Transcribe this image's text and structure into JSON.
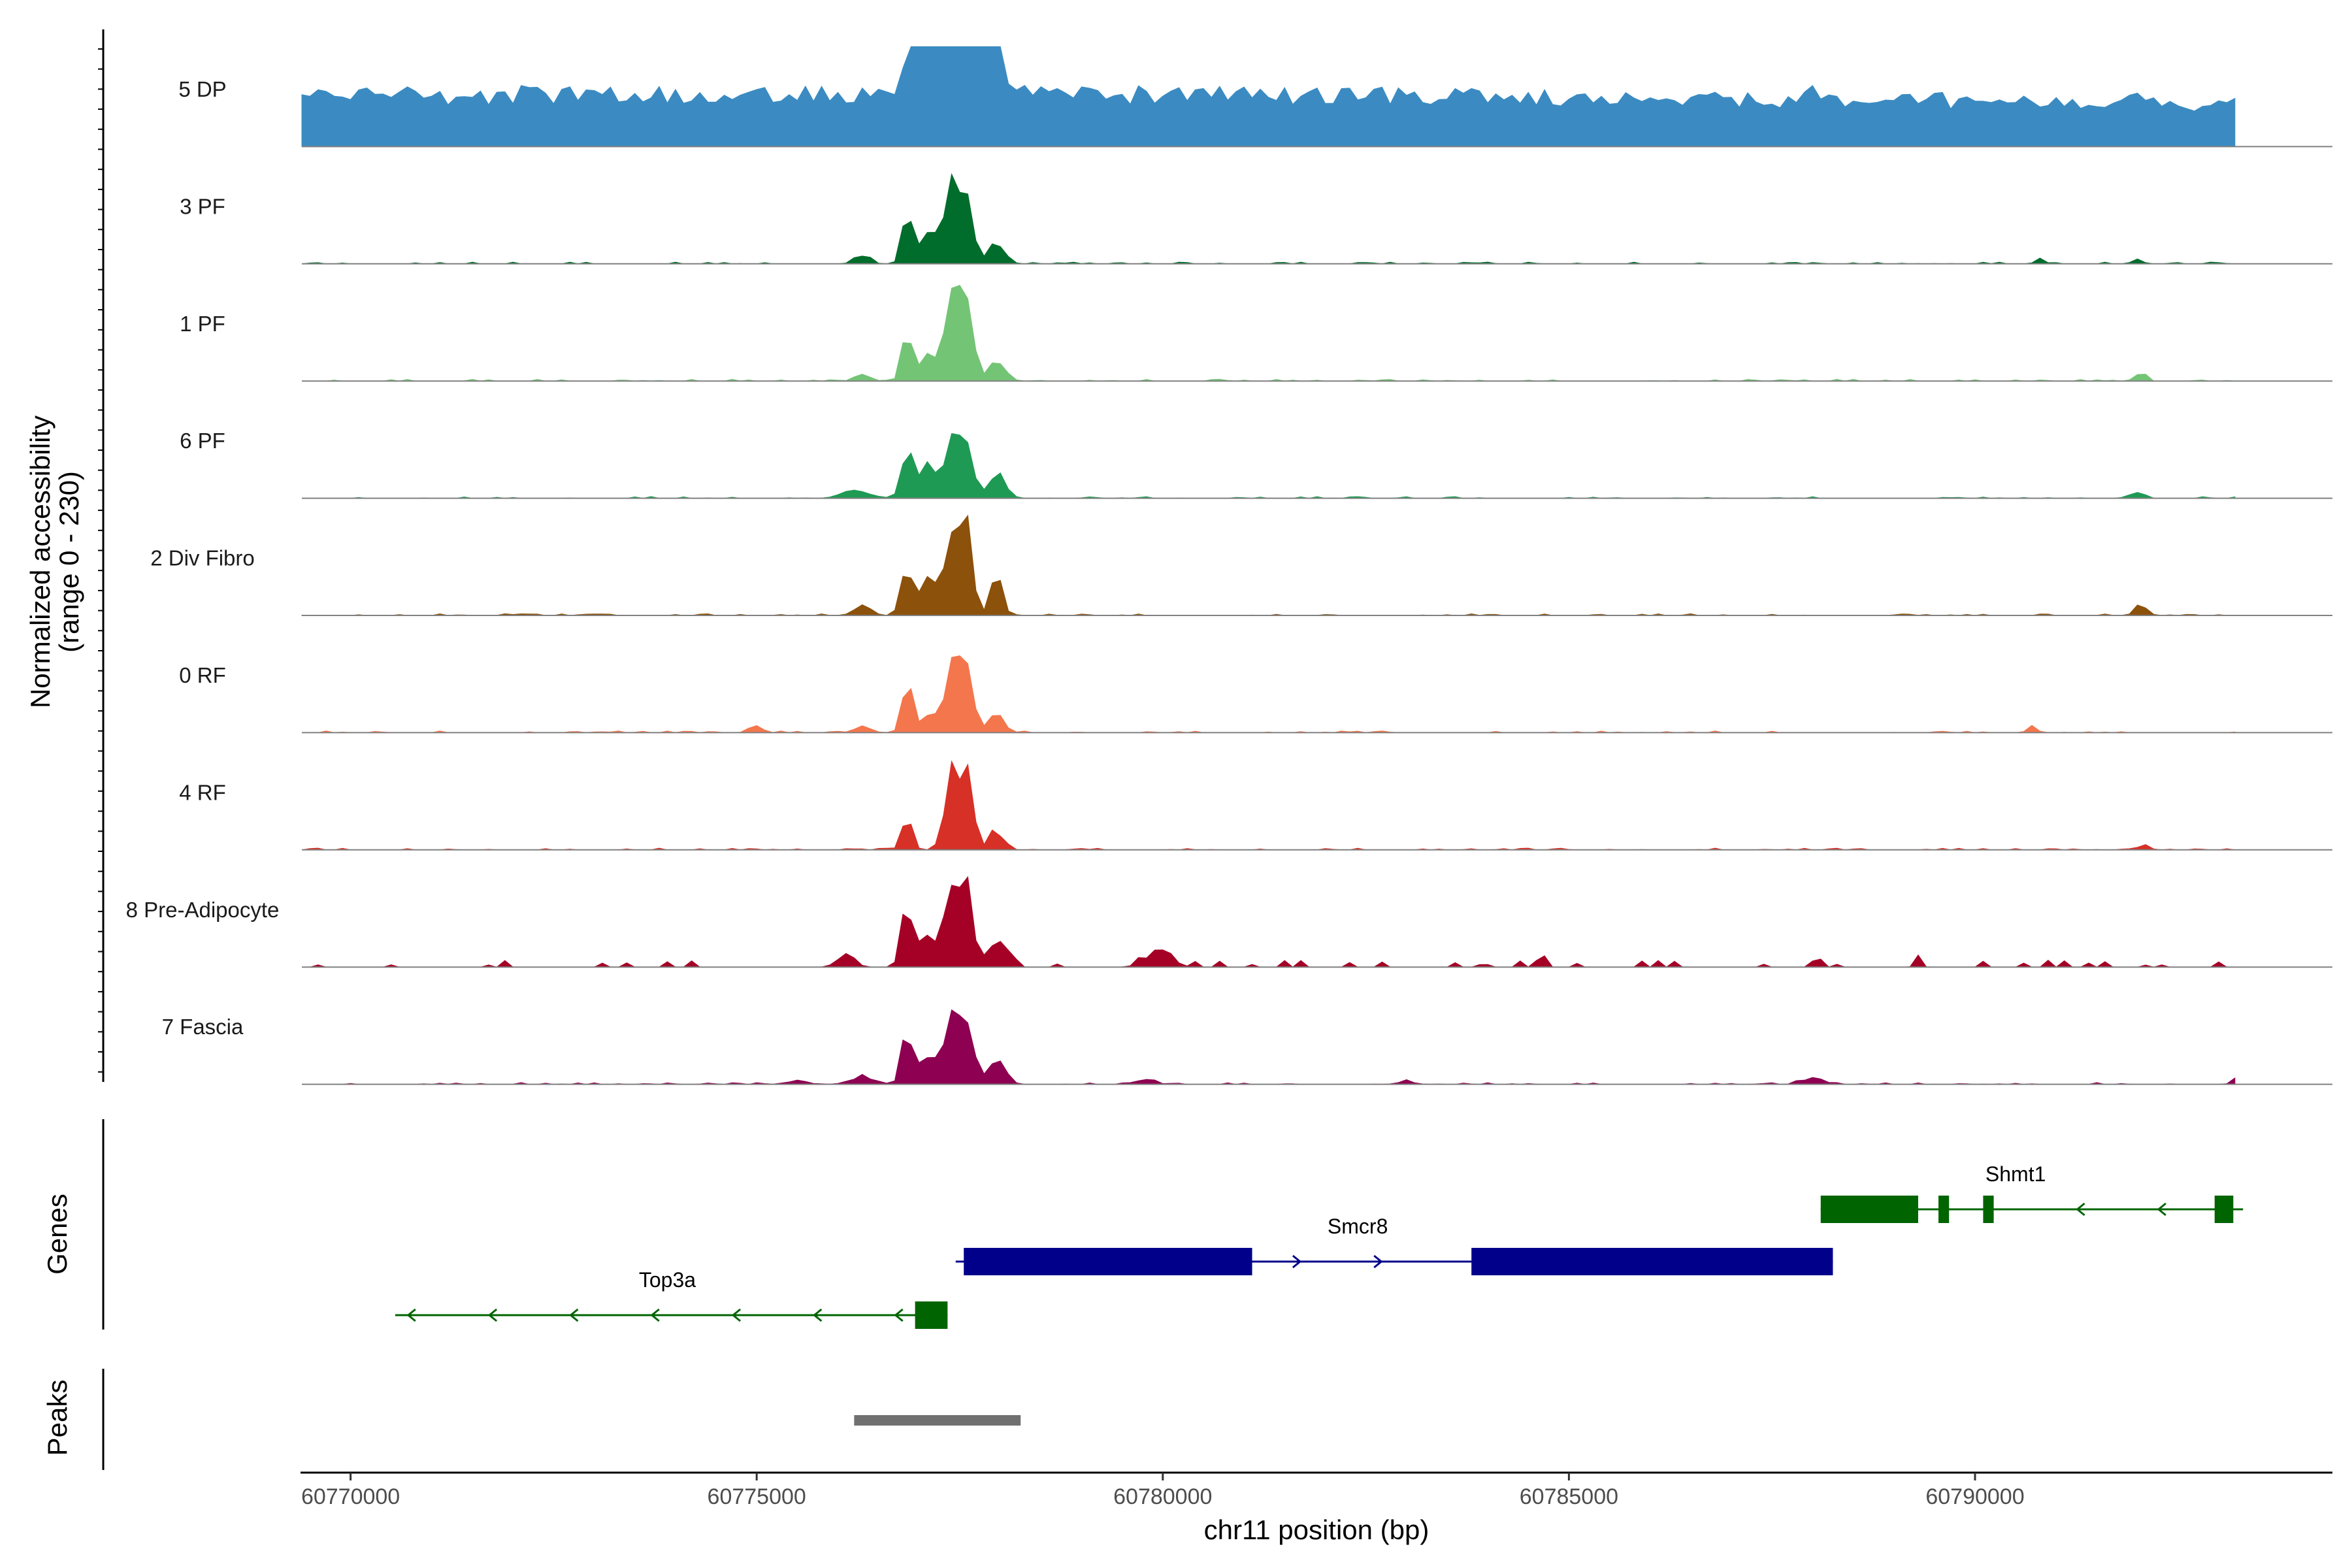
{
  "chart_data": {
    "type": "area",
    "title": "",
    "ylabel_line1": "Normalized accessibility",
    "ylabel_line2": "(range 0 - 230)",
    "y_range": [
      0,
      230
    ],
    "xlabel": "chr11 position (bp)",
    "chromosome": "chr11",
    "x_range": [
      60769400,
      60794400
    ],
    "x_ticks": [
      60770000,
      60775000,
      60780000,
      60785000,
      60790000
    ],
    "x_tick_labels": [
      "60770000",
      "60775000",
      "60780000",
      "60785000",
      "60790000"
    ],
    "bin_size_bp": 100,
    "tracks": [
      {
        "name": "5 DP",
        "color": "#3b8bc2"
      },
      {
        "name": "3 PF",
        "color": "#006d2c"
      },
      {
        "name": "1 PF",
        "color": "#74c476"
      },
      {
        "name": "6 PF",
        "color": "#1f9a54"
      },
      {
        "name": "2 Div Fibro",
        "color": "#8c510a"
      },
      {
        "name": "0 RF",
        "color": "#f4764c"
      },
      {
        "name": "4 RF",
        "color": "#d73027"
      },
      {
        "name": "8 Pre-Adipocyte",
        "color": "#a50026"
      },
      {
        "name": "7 Fascia",
        "color": "#8e0152"
      }
    ],
    "signal_series": [
      {
        "name": "5 DP",
        "peaks": [
          [
            60776650,
            130,
            50
          ],
          [
            60776850,
            0.24,
            0.12
          ],
          [
            60777150,
            0.53,
            0.3
          ],
          [
            60777420,
            0.98,
            0.6
          ],
          [
            60777600,
            0.68,
            0.3
          ],
          [
            60777950,
            0.26,
            0.2
          ],
          [
            60779800,
            0.03,
            0.1
          ],
          [
            60781500,
            0.03,
            0.1
          ],
          [
            60784000,
            0.03,
            0.1
          ],
          [
            60788000,
            0.07,
            0.12
          ],
          [
            60792000,
            0.09,
            0.12
          ],
          [
            60793000,
            0.06,
            0.1
          ]
        ]
      },
      {
        "name": "3 PF",
        "peaks": [
          [
            60776300,
            0.09,
            0.18
          ],
          [
            60776850,
            0.5,
            0.12
          ],
          [
            60777120,
            0.32,
            0.2
          ],
          [
            60777420,
            0.86,
            0.18
          ],
          [
            60777600,
            0.64,
            0.14
          ],
          [
            60777950,
            0.2,
            0.2
          ],
          [
            60790800,
            0.05,
            0.12
          ],
          [
            60792000,
            0.06,
            0.12
          ]
        ]
      },
      {
        "name": "1 PF",
        "peaks": [
          [
            60776300,
            0.07,
            0.18
          ],
          [
            60776850,
            0.54,
            0.12
          ],
          [
            60777120,
            0.3,
            0.2
          ],
          [
            60777420,
            0.98,
            0.18
          ],
          [
            60777600,
            0.7,
            0.14
          ],
          [
            60777950,
            0.18,
            0.22
          ],
          [
            60792050,
            0.1,
            0.1
          ]
        ]
      },
      {
        "name": "6 PF",
        "peaks": [
          [
            60776200,
            0.1,
            0.3
          ],
          [
            60776850,
            0.56,
            0.13
          ],
          [
            60777120,
            0.34,
            0.2
          ],
          [
            60777420,
            0.72,
            0.18
          ],
          [
            60777600,
            0.54,
            0.14
          ],
          [
            60777950,
            0.24,
            0.2
          ],
          [
            60792000,
            0.06,
            0.15
          ]
        ]
      },
      {
        "name": "2 Div Fibro",
        "peaks": [
          [
            60776300,
            0.1,
            0.2
          ],
          [
            60776850,
            0.52,
            0.14
          ],
          [
            60777120,
            0.36,
            0.2
          ],
          [
            60777420,
            0.84,
            0.18
          ],
          [
            60777600,
            0.85,
            0.12
          ],
          [
            60777950,
            0.5,
            0.14
          ],
          [
            60792050,
            0.1,
            0.15
          ]
        ]
      },
      {
        "name": "0 RF",
        "peaks": [
          [
            60775000,
            0.07,
            0.15
          ],
          [
            60776300,
            0.06,
            0.2
          ],
          [
            60776850,
            0.56,
            0.12
          ],
          [
            60777120,
            0.18,
            0.2
          ],
          [
            60777420,
            0.86,
            0.18
          ],
          [
            60777600,
            0.7,
            0.14
          ],
          [
            60777950,
            0.18,
            0.2
          ],
          [
            60790700,
            0.06,
            0.12
          ]
        ]
      },
      {
        "name": "4 RF",
        "peaks": [
          [
            60776850,
            0.4,
            0.12
          ],
          [
            60777420,
            0.86,
            0.18
          ],
          [
            60777600,
            0.74,
            0.14
          ],
          [
            60777950,
            0.2,
            0.18
          ],
          [
            60792100,
            0.05,
            0.12
          ]
        ]
      },
      {
        "name": "8 Pre-Adipocyte",
        "peaks": [
          [
            60776100,
            0.15,
            0.2
          ],
          [
            60776850,
            0.6,
            0.14
          ],
          [
            60777120,
            0.38,
            0.2
          ],
          [
            60777420,
            1.0,
            0.16
          ],
          [
            60777600,
            0.86,
            0.14
          ],
          [
            60777950,
            0.28,
            0.2
          ],
          [
            60779950,
            0.18,
            0.3
          ],
          [
            60784650,
            0.12,
            0.1
          ],
          [
            60788050,
            0.12,
            0.1
          ],
          [
            60789300,
            0.08,
            0.08
          ]
        ]
      },
      {
        "name": "7 Fascia",
        "peaks": [
          [
            60775500,
            0.04,
            0.25
          ],
          [
            60776300,
            0.08,
            0.3
          ],
          [
            60776850,
            0.56,
            0.13
          ],
          [
            60777120,
            0.32,
            0.2
          ],
          [
            60777420,
            0.74,
            0.18
          ],
          [
            60777600,
            0.62,
            0.14
          ],
          [
            60777950,
            0.24,
            0.2
          ],
          [
            60779800,
            0.05,
            0.2
          ],
          [
            60783000,
            0.03,
            0.2
          ],
          [
            60788000,
            0.07,
            0.25
          ],
          [
            60793200,
            0.06,
            0.1
          ]
        ]
      }
    ],
    "genes": [
      {
        "name": "Top3a",
        "strand": "-",
        "start": 60770550,
        "end": 60777350,
        "color": "#006400",
        "exons": [
          [
            60776950,
            60777350
          ]
        ]
      },
      {
        "name": "Smcr8",
        "strand": "+",
        "start": 60777450,
        "end": 60788250,
        "color": "#00008b",
        "exons": [
          [
            60777550,
            60781100
          ],
          [
            60783800,
            60788250
          ]
        ]
      },
      {
        "name": "Shmt1",
        "strand": "-",
        "start": 60788100,
        "end": 60793300,
        "color": "#006400",
        "exons": [
          [
            60788100,
            60789300
          ],
          [
            60789550,
            60789680
          ],
          [
            60790100,
            60790230
          ],
          [
            60792950,
            60793180
          ]
        ]
      }
    ],
    "peaks_track": {
      "label": "Peaks",
      "color": "#707070",
      "regions": [
        [
          60776200,
          60778250
        ]
      ]
    },
    "genes_track_label": "Genes"
  }
}
